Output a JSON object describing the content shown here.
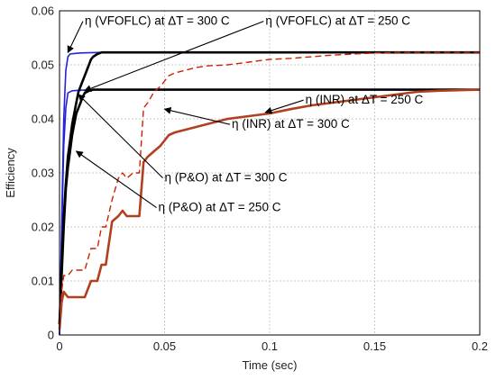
{
  "chart_data": {
    "type": "line",
    "xlabel": "Time (sec)",
    "ylabel": "Efficiency",
    "xlim": [
      0,
      0.2
    ],
    "ylim": [
      0,
      0.06
    ],
    "grid": true,
    "x_ticks": [
      "0",
      "0.05",
      "0.1",
      "0.15",
      "0.2"
    ],
    "y_ticks": [
      "0",
      "0.01",
      "0.02",
      "0.03",
      "0.04",
      "0.05",
      "0.06"
    ],
    "x_tick_values": [
      0,
      0.05,
      0.1,
      0.15,
      0.2
    ],
    "y_tick_values": [
      0,
      0.01,
      0.02,
      0.03,
      0.04,
      0.05,
      0.06
    ],
    "series": [
      {
        "color": "#2222dd",
        "style": "solid",
        "width": 1.6,
        "x": [
          0,
          0.001,
          0.002,
          0.003,
          0.004,
          0.005,
          0.007,
          0.01,
          0.02,
          0.2
        ],
        "y": [
          0,
          0.02,
          0.04,
          0.049,
          0.0515,
          0.052,
          0.0521,
          0.0522,
          0.0523,
          0.0523
        ]
      },
      {
        "color": "#2222dd",
        "style": "solid",
        "width": 1.6,
        "x": [
          0,
          0.001,
          0.002,
          0.003,
          0.004,
          0.006,
          0.01,
          0.02,
          0.2
        ],
        "y": [
          0,
          0.018,
          0.035,
          0.042,
          0.0448,
          0.0452,
          0.0453,
          0.0454,
          0.0454
        ]
      },
      {
        "color": "#000000",
        "style": "solid",
        "width": 2.6,
        "x": [
          0,
          0.002,
          0.003,
          0.004,
          0.005,
          0.006,
          0.007,
          0.008,
          0.009,
          0.01,
          0.011,
          0.012,
          0.013,
          0.014,
          0.015,
          0.016,
          0.018,
          0.02,
          0.2
        ],
        "y": [
          0.002,
          0.022,
          0.028,
          0.033,
          0.036,
          0.039,
          0.041,
          0.043,
          0.045,
          0.046,
          0.047,
          0.048,
          0.049,
          0.05,
          0.051,
          0.0515,
          0.052,
          0.0523,
          0.0523
        ]
      },
      {
        "color": "#000000",
        "style": "solid",
        "width": 2.6,
        "x": [
          0,
          0.002,
          0.003,
          0.004,
          0.005,
          0.006,
          0.007,
          0.008,
          0.009,
          0.01,
          0.011,
          0.012,
          0.014,
          0.016,
          0.2
        ],
        "y": [
          0.002,
          0.02,
          0.027,
          0.031,
          0.034,
          0.037,
          0.039,
          0.041,
          0.042,
          0.043,
          0.044,
          0.0448,
          0.0452,
          0.0454,
          0.0454
        ]
      },
      {
        "color": "#cc2200",
        "style": "dashed",
        "width": 1.4,
        "x": [
          0,
          0.001,
          0.002,
          0.004,
          0.006,
          0.009,
          0.012,
          0.015,
          0.018,
          0.02,
          0.022,
          0.025,
          0.028,
          0.03,
          0.032,
          0.035,
          0.038,
          0.04,
          0.042,
          0.045,
          0.048,
          0.05,
          0.052,
          0.055,
          0.06,
          0.065,
          0.07,
          0.08,
          0.09,
          0.1,
          0.11,
          0.12,
          0.13,
          0.14,
          0.15,
          0.16,
          0.17,
          0.18,
          0.2
        ],
        "y": [
          0.001,
          0.008,
          0.011,
          0.011,
          0.012,
          0.012,
          0.012,
          0.016,
          0.016,
          0.02,
          0.02,
          0.025,
          0.029,
          0.03,
          0.029,
          0.03,
          0.03,
          0.042,
          0.043,
          0.045,
          0.046,
          0.047,
          0.048,
          0.0485,
          0.049,
          0.0495,
          0.0498,
          0.05,
          0.0505,
          0.051,
          0.0512,
          0.0515,
          0.0518,
          0.052,
          0.0522,
          0.0523,
          0.0523,
          0.0523,
          0.0523
        ]
      },
      {
        "color": "#b04020",
        "style": "solid",
        "width": 2.6,
        "x": [
          0,
          0.001,
          0.002,
          0.004,
          0.006,
          0.009,
          0.012,
          0.015,
          0.018,
          0.02,
          0.022,
          0.025,
          0.028,
          0.03,
          0.032,
          0.035,
          0.038,
          0.04,
          0.042,
          0.045,
          0.048,
          0.05,
          0.052,
          0.055,
          0.06,
          0.065,
          0.07,
          0.08,
          0.09,
          0.1,
          0.11,
          0.12,
          0.13,
          0.14,
          0.15,
          0.16,
          0.17,
          0.18,
          0.2
        ],
        "y": [
          0.001,
          0.006,
          0.008,
          0.007,
          0.007,
          0.007,
          0.007,
          0.01,
          0.01,
          0.013,
          0.013,
          0.021,
          0.022,
          0.023,
          0.022,
          0.022,
          0.022,
          0.032,
          0.033,
          0.034,
          0.035,
          0.036,
          0.037,
          0.0375,
          0.038,
          0.0385,
          0.039,
          0.04,
          0.0405,
          0.041,
          0.0418,
          0.0425,
          0.043,
          0.0435,
          0.044,
          0.0445,
          0.045,
          0.0452,
          0.0454
        ]
      }
    ],
    "annotations": [
      {
        "text": "η (VFOFLC) at ΔT = 300  C",
        "x": 0.012,
        "y": 0.0574,
        "arrow_x": 0.004,
        "arrow_y": 0.0523
      },
      {
        "text": "η (VFOFLC) at ΔT = 250  C",
        "x": 0.098,
        "y": 0.0574,
        "arrow_x": 0.012,
        "arrow_y": 0.0452
      },
      {
        "text": "η (INR) at ΔT = 250  C",
        "x": 0.117,
        "y": 0.0428,
        "arrow_x": 0.098,
        "arrow_y": 0.0412
      },
      {
        "text": "η (INR) at ΔT = 300  C",
        "x": 0.082,
        "y": 0.0383,
        "arrow_x": 0.05,
        "arrow_y": 0.0418
      },
      {
        "text": "η (P&O) at ΔT = 300  C",
        "x": 0.05,
        "y": 0.0284,
        "arrow_x": 0.009,
        "arrow_y": 0.0445
      },
      {
        "text": "η (P&O) at ΔT = 250  C",
        "x": 0.047,
        "y": 0.0229,
        "arrow_x": 0.008,
        "arrow_y": 0.034
      }
    ]
  }
}
